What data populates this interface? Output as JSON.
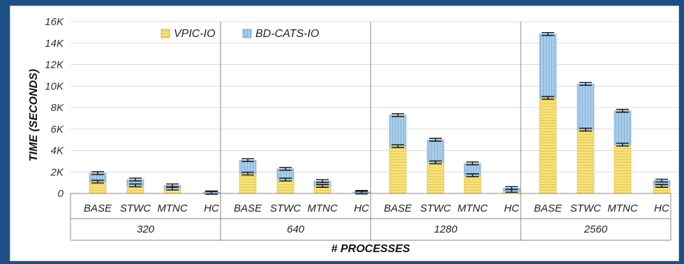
{
  "chart_data": {
    "type": "bar",
    "stacked": true,
    "title": "",
    "xlabel": "# PROCESSES",
    "ylabel": "TIME (SECONDS)",
    "ylim": [
      0,
      16000
    ],
    "yticks": [
      "0",
      "2K",
      "4K",
      "6K",
      "8K",
      "10K",
      "12K",
      "14K",
      "16K"
    ],
    "grid": true,
    "legend_position": "top-left",
    "groups": [
      "320",
      "640",
      "1280",
      "2560"
    ],
    "categories": [
      "BASE",
      "STWC",
      "MTNC",
      "HC"
    ],
    "series": [
      {
        "name": "VPIC-IO",
        "color": "#f6e27a",
        "values": [
          [
            1100,
            750,
            450,
            50
          ],
          [
            1850,
            1300,
            700,
            80
          ],
          [
            4400,
            2900,
            1700,
            250
          ],
          [
            8900,
            5950,
            4550,
            700
          ]
        ]
      },
      {
        "name": "BD-CATS-IO",
        "color": "#a9cdea",
        "values": [
          [
            800,
            550,
            300,
            50
          ],
          [
            1250,
            1000,
            450,
            70
          ],
          [
            2900,
            2100,
            1100,
            250
          ],
          [
            5950,
            4250,
            3150,
            500
          ]
        ]
      }
    ]
  }
}
